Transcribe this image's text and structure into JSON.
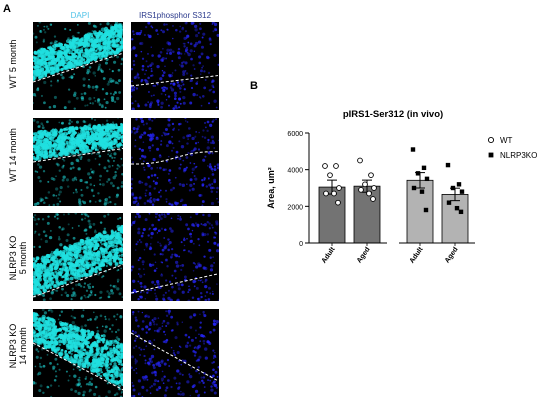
{
  "figure": {
    "panel_a": {
      "label": "A",
      "columns": [
        {
          "label": "DAPI",
          "color": "#4fc3e8"
        },
        {
          "label": "IRS1phosphor S312",
          "color": "#2b3a8c"
        }
      ],
      "rows": [
        {
          "label_lines": [
            "WT 5 month"
          ]
        },
        {
          "label_lines": [
            "WT 14 month"
          ]
        },
        {
          "label_lines": [
            "NLRP3 KO",
            "5 month"
          ]
        },
        {
          "label_lines": [
            "NLRP3 KO",
            "14 month"
          ]
        }
      ],
      "colors": {
        "dapi": "#20e0e0",
        "irs1": "#2626ff",
        "background": "#000000",
        "boundary": "#ffffff"
      }
    },
    "panel_b": {
      "label": "B"
    }
  },
  "chart_data": {
    "type": "bar",
    "title": "pIRS1-Ser312 (in vivo)",
    "ylabel": "Area, um²",
    "ylim": [
      0,
      6000
    ],
    "yticks": [
      "0",
      "2000",
      "4000",
      "6000"
    ],
    "categories": [
      "Adult",
      "Aged",
      "Adult",
      "Aged"
    ],
    "bars": [
      {
        "group": "WT",
        "category": "Adult",
        "mean": 3050,
        "sem": 380,
        "fill": "#737373",
        "points": [
          4200,
          4200,
          3700,
          3000,
          2700,
          2700,
          2200
        ]
      },
      {
        "group": "WT",
        "category": "Aged",
        "mean": 3100,
        "sem": 330,
        "fill": "#737373",
        "points": [
          4500,
          3700,
          3200,
          3000,
          2900,
          2700,
          2400
        ]
      },
      {
        "group": "NLRP3KO",
        "category": "Adult",
        "mean": 3420,
        "sem": 420,
        "fill": "#b3b3b3",
        "points": [
          5100,
          4100,
          3800,
          3500,
          3000,
          2800,
          1800
        ]
      },
      {
        "group": "NLRP3KO",
        "category": "Aged",
        "mean": 2650,
        "sem": 340,
        "fill": "#b3b3b3",
        "points": [
          4250,
          3200,
          3000,
          2800,
          2200,
          1900,
          1700
        ]
      }
    ],
    "legend": {
      "placement": "right",
      "entries": [
        {
          "label": "WT",
          "marker": "open-circle"
        },
        {
          "label": "NLRP3KO",
          "marker": "filled-square"
        }
      ]
    }
  }
}
